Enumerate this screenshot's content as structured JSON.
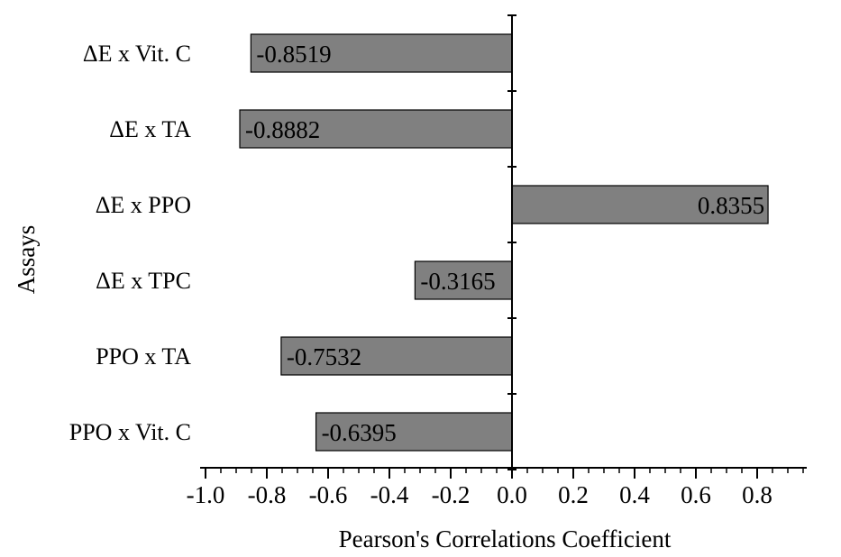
{
  "chart_data": {
    "type": "bar",
    "orientation": "horizontal",
    "categories": [
      "ΔE x Vit. C",
      "ΔE x TA",
      "ΔE x PPO",
      "ΔE x TPC",
      "PPO x TA",
      "PPO x Vit. C"
    ],
    "values": [
      -0.8519,
      -0.8882,
      0.8355,
      -0.3165,
      -0.7532,
      -0.6395
    ],
    "data_labels": [
      "-0.8519",
      "-0.8882",
      "0.8355",
      "-0.3165",
      "-0.7532",
      "-0.6395"
    ],
    "xlabel": "Pearson's Correlations Coefficient",
    "ylabel": "Assays",
    "xlim": [
      -1.0,
      0.96
    ],
    "xticks": [
      -1.0,
      -0.8,
      -0.6,
      -0.4,
      -0.2,
      0.0,
      0.2,
      0.4,
      0.6,
      0.8
    ],
    "xtick_labels": [
      "-1.0",
      "-0.8",
      "-0.6",
      "-0.4",
      "-0.2",
      "0.0",
      "0.2",
      "0.4",
      "0.6",
      "0.8"
    ],
    "minor_tick_step": 0.05,
    "grid": false,
    "legend": "none",
    "bar_color": "#808080",
    "bar_edge_color": "#000000"
  }
}
